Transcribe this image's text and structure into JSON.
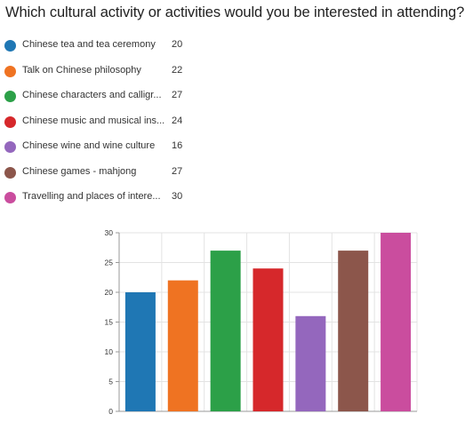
{
  "title": "Which cultural activity or activities would you be interested in attending?",
  "legend": [
    {
      "label": "Chinese tea and tea ceremony",
      "count": "20",
      "color": "#1f77b4"
    },
    {
      "label": "Talk on Chinese philosophy",
      "count": "22",
      "color": "#ef7322"
    },
    {
      "label": "Chinese characters and calligr...",
      "count": "27",
      "color": "#2ca048"
    },
    {
      "label": "Chinese music and musical ins...",
      "count": "24",
      "color": "#d6282b"
    },
    {
      "label": "Chinese wine and wine culture",
      "count": "16",
      "color": "#9467bd"
    },
    {
      "label": "Chinese games - mahjong",
      "count": "27",
      "color": "#8c564b"
    },
    {
      "label": "Travelling and places of intere...",
      "count": "30",
      "color": "#ca4d9e"
    }
  ],
  "chart_data": {
    "type": "bar",
    "categories": [
      "Chinese tea and tea ceremony",
      "Talk on Chinese philosophy",
      "Chinese characters and calligr...",
      "Chinese music and musical ins...",
      "Chinese wine and wine culture",
      "Chinese games - mahjong",
      "Travelling and places of intere..."
    ],
    "values": [
      20,
      22,
      27,
      24,
      16,
      27,
      30
    ],
    "colors": [
      "#1f77b4",
      "#ef7322",
      "#2ca048",
      "#d6282b",
      "#9467bd",
      "#8c564b",
      "#ca4d9e"
    ],
    "title": "Which cultural activity or activities would you be interested in attending?",
    "xlabel": "",
    "ylabel": "",
    "ylim": [
      0,
      30
    ],
    "yticks": [
      "0",
      "5",
      "10",
      "15",
      "20",
      "25",
      "30"
    ],
    "grid": true,
    "legend_position": "top-left"
  }
}
